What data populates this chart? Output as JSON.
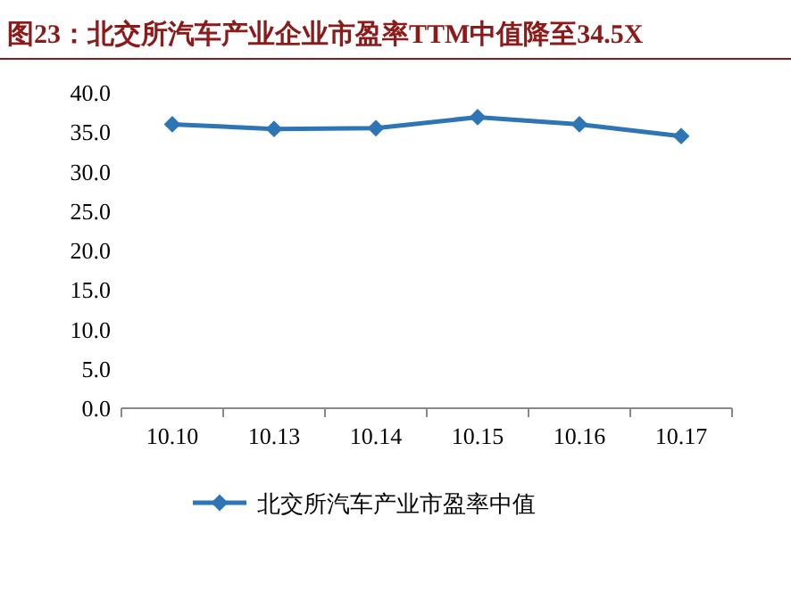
{
  "chart_data": {
    "type": "line",
    "title": "图23：北交所汽车产业企业市盈率TTM中值降至34.5X",
    "categories": [
      "10.10",
      "10.13",
      "10.14",
      "10.15",
      "10.16",
      "10.17"
    ],
    "series": [
      {
        "name": "北交所汽车产业市盈率中值",
        "color": "#2e75b6",
        "values": [
          36.0,
          35.4,
          35.5,
          36.9,
          36.0,
          34.5
        ]
      }
    ],
    "ylim": [
      0,
      40
    ],
    "yticks": [
      {
        "value": 0,
        "label": "0.0"
      },
      {
        "value": 5,
        "label": "5.0"
      },
      {
        "value": 10,
        "label": "10.0"
      },
      {
        "value": 15,
        "label": "15.0"
      },
      {
        "value": 20,
        "label": "20.0"
      },
      {
        "value": 25,
        "label": "25.0"
      },
      {
        "value": 30,
        "label": "30.0"
      },
      {
        "value": 35,
        "label": "35.0"
      },
      {
        "value": 40,
        "label": "40.0"
      }
    ],
    "legend": "bottom",
    "marker": "diamond",
    "line_style": "solid",
    "grid": false
  }
}
